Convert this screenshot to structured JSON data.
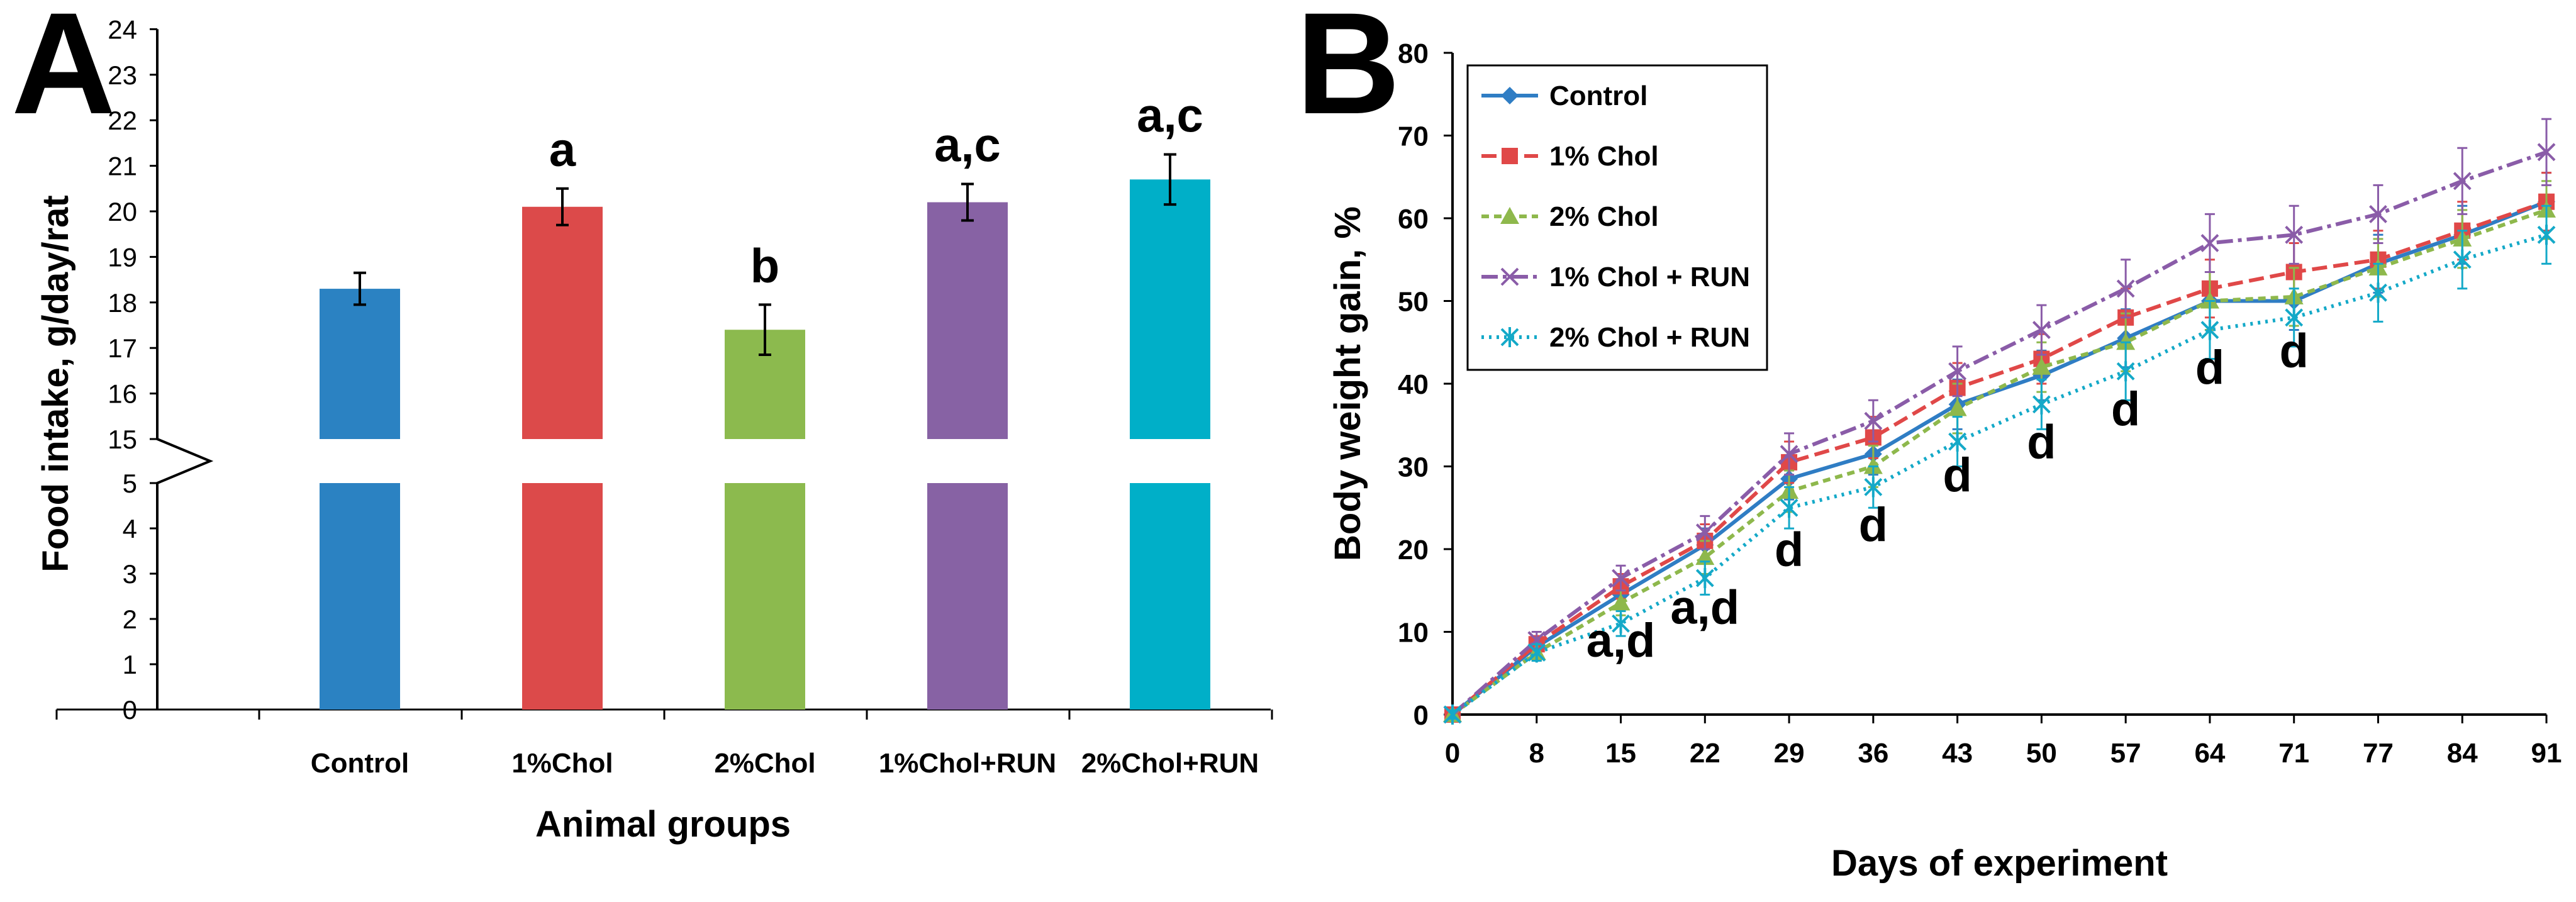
{
  "chart_data": [
    {
      "panel_label": "A",
      "type": "bar",
      "title": "",
      "xlabel": "Animal groups",
      "ylabel": "Food intake, g/day/rat",
      "ylim": [
        0,
        24
      ],
      "axis_break": [
        5,
        15
      ],
      "y_ticks": [
        "0",
        "1",
        "2",
        "3",
        "4",
        "5",
        "15",
        "16",
        "17",
        "18",
        "19",
        "20",
        "21",
        "22",
        "23",
        "24"
      ],
      "categories": [
        "Control",
        "1%Chol",
        "2%Chol",
        "1%Chol+RUN",
        "2%Chol+RUN"
      ],
      "values": [
        18.3,
        20.1,
        17.4,
        20.2,
        20.7
      ],
      "errors": [
        0.35,
        0.4,
        0.55,
        0.4,
        0.55
      ],
      "colors": [
        "#2B82C2",
        "#DC4A4A",
        "#8CBA4E",
        "#8762A4",
        "#00AFC8"
      ],
      "significance": [
        "",
        "a",
        "b",
        "a,c",
        "a,c"
      ]
    },
    {
      "panel_label": "B",
      "type": "line",
      "title": "",
      "xlabel": "Days of experiment",
      "ylabel": "Body weight gain, %",
      "ylim": [
        0,
        80
      ],
      "y_ticks": [
        "0",
        "10",
        "20",
        "30",
        "40",
        "50",
        "60",
        "70",
        "80"
      ],
      "x": [
        "0",
        "8",
        "15",
        "22",
        "29",
        "36",
        "43",
        "50",
        "57",
        "64",
        "71",
        "77",
        "84",
        "91"
      ],
      "series": [
        {
          "name": "Control",
          "color": "#2F7DC4",
          "dash": "",
          "marker": "diamond",
          "values": [
            0,
            8.2,
            14.5,
            20.5,
            28.5,
            31.5,
            37.5,
            41.0,
            45.5,
            50.0,
            50.0,
            54.5,
            58.0,
            62.0
          ],
          "errors": [
            0.5,
            1.0,
            1.5,
            2.0,
            2.5,
            2.5,
            3.0,
            3.0,
            3.5,
            3.5,
            3.5,
            3.5,
            3.5,
            3.5
          ]
        },
        {
          "name": "1% Chol",
          "color": "#E04848",
          "dash": "24 10",
          "marker": "square",
          "values": [
            0,
            8.5,
            15.5,
            21.0,
            30.5,
            33.5,
            39.5,
            43.0,
            48.0,
            51.5,
            53.5,
            55.0,
            58.5,
            62.0
          ],
          "errors": [
            0.5,
            1.0,
            1.5,
            2.0,
            2.5,
            2.5,
            3.0,
            3.0,
            3.5,
            3.5,
            3.5,
            3.5,
            3.5,
            3.5
          ]
        },
        {
          "name": "2% Chol",
          "color": "#8EB84C",
          "dash": "12 8",
          "marker": "triangle",
          "values": [
            0,
            7.5,
            13.5,
            19.0,
            27.0,
            30.0,
            37.0,
            42.0,
            45.0,
            50.0,
            50.5,
            54.0,
            57.5,
            61.0
          ],
          "errors": [
            0.5,
            1.0,
            1.5,
            2.0,
            2.5,
            2.5,
            3.0,
            3.0,
            3.5,
            3.5,
            3.5,
            3.5,
            3.5,
            3.5
          ]
        },
        {
          "name": "1% Chol + RUN",
          "color": "#8A5CA8",
          "dash": "26 8 6 8",
          "marker": "x",
          "values": [
            0,
            9.0,
            16.5,
            22.0,
            31.5,
            35.5,
            41.5,
            46.5,
            51.5,
            57.0,
            58.0,
            60.5,
            64.5,
            68.0
          ],
          "errors": [
            0.5,
            1.0,
            1.5,
            2.0,
            2.5,
            2.5,
            3.0,
            3.0,
            3.5,
            3.5,
            3.5,
            3.5,
            4.0,
            4.0
          ]
        },
        {
          "name": "2% Chol + RUN",
          "color": "#14A9C8",
          "dash": "4 8",
          "marker": "asterisk",
          "values": [
            0,
            7.5,
            11.0,
            16.5,
            25.0,
            27.5,
            33.0,
            37.5,
            41.5,
            46.5,
            48.0,
            51.0,
            55.0,
            58.0
          ],
          "errors": [
            0.5,
            1.0,
            1.5,
            2.0,
            2.5,
            2.5,
            3.0,
            3.0,
            3.5,
            3.5,
            3.5,
            3.5,
            3.5,
            3.5
          ]
        }
      ],
      "legend_position": "top-left",
      "annotations": [
        {
          "x": "15",
          "y": 7,
          "text": "a,d"
        },
        {
          "x": "22",
          "y": 11,
          "text": "a,d"
        },
        {
          "x": "29",
          "y": 18,
          "text": "d"
        },
        {
          "x": "36",
          "y": 21,
          "text": "d"
        },
        {
          "x": "43",
          "y": 27,
          "text": "d"
        },
        {
          "x": "50",
          "y": 31,
          "text": "d"
        },
        {
          "x": "57",
          "y": 35,
          "text": "d"
        },
        {
          "x": "64",
          "y": 40,
          "text": "d"
        },
        {
          "x": "71",
          "y": 42,
          "text": "d"
        }
      ]
    }
  ]
}
